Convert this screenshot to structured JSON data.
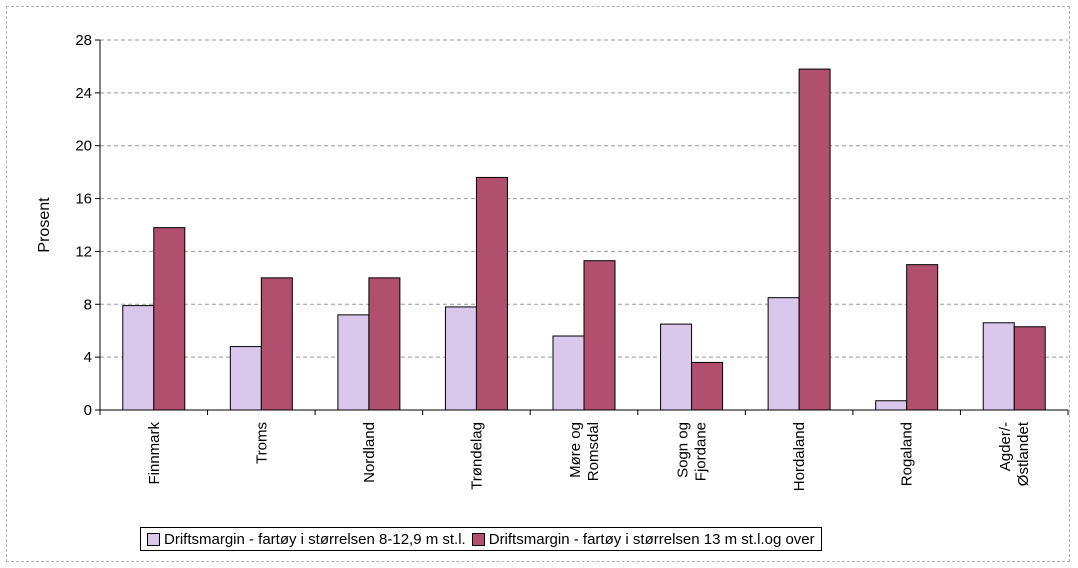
{
  "chart_data": {
    "type": "bar",
    "categories": [
      "Finnmark",
      "Troms",
      "Nordland",
      "Trøndelag",
      "Møre og Romsdal",
      "Sogn og Fjordane",
      "Hordaland",
      "Rogaland",
      "Agder/-Østlandet"
    ],
    "category_lines": [
      [
        "Finnmark"
      ],
      [
        "Troms"
      ],
      [
        "Nordland"
      ],
      [
        "Trøndelag"
      ],
      [
        "Møre og",
        "Romsdal"
      ],
      [
        "Sogn og",
        "Fjordane"
      ],
      [
        "Hordaland"
      ],
      [
        "Rogaland"
      ],
      [
        "Agder/-",
        "Østlandet"
      ]
    ],
    "series": [
      {
        "name": "Driftsmargin - fartøy i størrelsen 8-12,9 m st.l.",
        "color": "#d9c8ec",
        "values": [
          7.9,
          4.8,
          7.2,
          7.8,
          5.6,
          6.5,
          8.5,
          0.7,
          6.6
        ]
      },
      {
        "name": "Driftsmargin - fartøy i størrelsen 13 m st.l.og over",
        "color": "#b0506e",
        "values": [
          13.8,
          10.0,
          10.0,
          17.6,
          11.3,
          3.6,
          25.8,
          11.0,
          6.3
        ]
      }
    ],
    "ylabel": "Prosent",
    "ylim": [
      0,
      28
    ],
    "yticks": [
      0,
      4,
      8,
      12,
      16,
      20,
      24,
      28
    ],
    "grid": true,
    "legend_position": "bottom"
  }
}
